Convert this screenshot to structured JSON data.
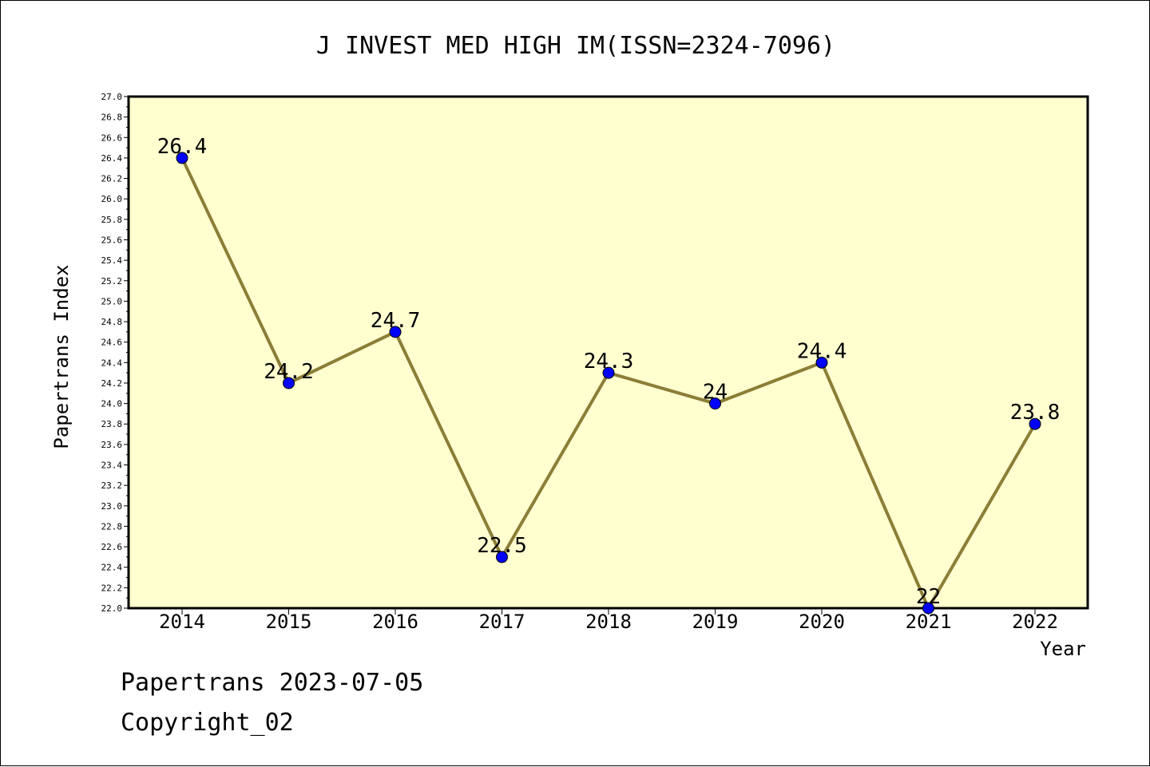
{
  "chart_data": {
    "type": "line",
    "title": "J INVEST MED HIGH IM(ISSN=2324-7096)",
    "xlabel": "Year",
    "ylabel": "Papertrans Index",
    "x": [
      "2014",
      "2015",
      "2016",
      "2017",
      "2018",
      "2019",
      "2020",
      "2021",
      "2022"
    ],
    "series": [
      {
        "values": [
          26.4,
          24.2,
          24.7,
          22.5,
          24.3,
          24.0,
          24.4,
          22.0,
          23.8
        ],
        "labels": [
          "26.4",
          "24.2",
          "24.7",
          "22.5",
          "24.3",
          "24",
          "24.4",
          "22",
          "23.8"
        ]
      }
    ],
    "ylim": [
      22.0,
      27.0
    ],
    "ytick_step": 0.2,
    "grid": false,
    "legend": "none",
    "colors": {
      "plot_background": "#ffffd0",
      "line": "#8c7d37",
      "marker": "#0000ff"
    }
  },
  "footer": {
    "date_line": "Papertrans 2023-07-05",
    "copyright_line": "Copyright_02"
  }
}
